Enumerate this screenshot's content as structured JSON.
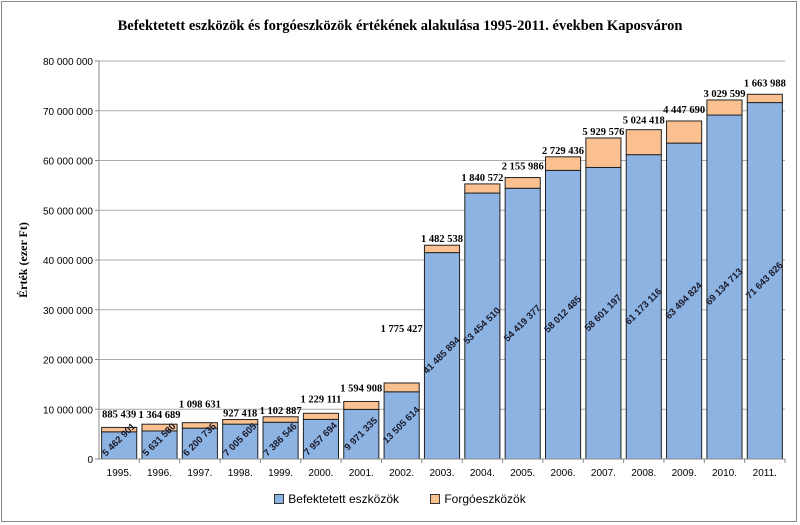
{
  "chart_data": {
    "type": "bar",
    "stacked": true,
    "title": "Befektetett eszközök és forgóeszközök értékének alakulása 1995-2011. években Kaposváron",
    "xlabel": "",
    "ylabel": "Érték (ezer Ft)",
    "ylim": [
      0,
      80000000
    ],
    "yticks": [
      "0",
      "10 000 000",
      "20 000 000",
      "30 000 000",
      "40 000 000",
      "50 000 000",
      "60 000 000",
      "70 000 000",
      "80 000 000"
    ],
    "grid": true,
    "legend": "bottom",
    "categories": [
      "1995.",
      "1996.",
      "1997.",
      "1998.",
      "1999.",
      "2000.",
      "2001.",
      "2002.",
      "2003.",
      "2004.",
      "2005.",
      "2006.",
      "2007.",
      "2008.",
      "2009.",
      "2010.",
      "2011."
    ],
    "series": [
      {
        "name": "Befektetett eszközök",
        "color": "#8db3e2",
        "values": [
          5462901,
          5631580,
          6200735,
          7005605,
          7386546,
          7957694,
          9971335,
          13505614,
          41485894,
          53454510,
          54419377,
          58012485,
          58601197,
          61173116,
          63494824,
          69134713,
          71643826
        ],
        "labels": [
          "5 462 901",
          "5 631 580",
          "6 200 735",
          "7 005 605",
          "7 386 546",
          "7 957 694",
          "9 971 335",
          "13 505 614",
          "41 485 894",
          "53 454 510",
          "54 419 377",
          "58 012 485",
          "58 601 197",
          "61 173 116",
          "63 494 824",
          "69 134 713",
          "71 643 826"
        ]
      },
      {
        "name": "Forgóeszközök",
        "color": "#fac090",
        "values": [
          885439,
          1364689,
          1098631,
          927418,
          1102887,
          1229111,
          1594908,
          1775427,
          1482538,
          1840572,
          2155986,
          2729436,
          5929576,
          5024418,
          4447690,
          3029599,
          1663988
        ],
        "labels": [
          "885 439",
          "1 364 689",
          "1 098 631",
          "927 418",
          "1 102 887",
          "1 229 111",
          "1 594 908",
          "1 775 427",
          "1 482 538",
          "1 840 572",
          "2 155 986",
          "2 729 436",
          "5 929 576",
          "5 024 418",
          "4 447 690",
          "3 029 599",
          "1 663 988"
        ]
      }
    ]
  }
}
